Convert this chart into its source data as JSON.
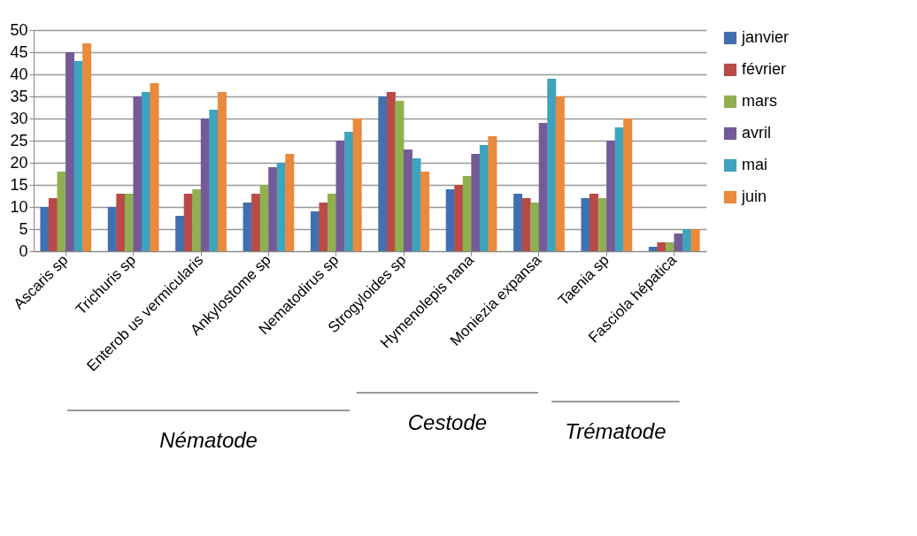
{
  "chart_data": {
    "type": "bar",
    "categories": [
      "Ascaris sp",
      "Trichuris sp",
      "Enterob us vermicularis",
      "Ankylostome sp",
      "Nematodirus sp",
      "Strogyloides sp",
      "Hymenolepis nana",
      "Moniezia expansa",
      "Taenia sp",
      "Fasciola hépatica"
    ],
    "series": [
      {
        "name": "janvier",
        "color": "#4170b0",
        "values": [
          10,
          10,
          8,
          11,
          9,
          35,
          14,
          13,
          12,
          1
        ]
      },
      {
        "name": "février",
        "color": "#b94a48",
        "values": [
          12,
          13,
          13,
          13,
          11,
          36,
          15,
          12,
          13,
          2
        ]
      },
      {
        "name": "mars",
        "color": "#90b050",
        "values": [
          18,
          13,
          14,
          15,
          13,
          34,
          17,
          11,
          12,
          2
        ]
      },
      {
        "name": "avril",
        "color": "#755a98",
        "values": [
          45,
          35,
          30,
          19,
          25,
          23,
          22,
          29,
          25,
          4
        ]
      },
      {
        "name": "mai",
        "color": "#3ea3bd",
        "values": [
          43,
          36,
          32,
          20,
          27,
          21,
          24,
          39,
          28,
          5
        ]
      },
      {
        "name": "juin",
        "color": "#ea8a3c",
        "values": [
          47,
          38,
          36,
          22,
          30,
          18,
          26,
          35,
          30,
          5
        ]
      }
    ],
    "ylim": [
      0,
      50
    ],
    "yticks": [
      0,
      5,
      10,
      15,
      20,
      25,
      30,
      35,
      40,
      45,
      50
    ],
    "grid": "y",
    "legend": "right",
    "annotations": [
      "Nématode",
      "Cestode",
      "Trématode"
    ]
  }
}
